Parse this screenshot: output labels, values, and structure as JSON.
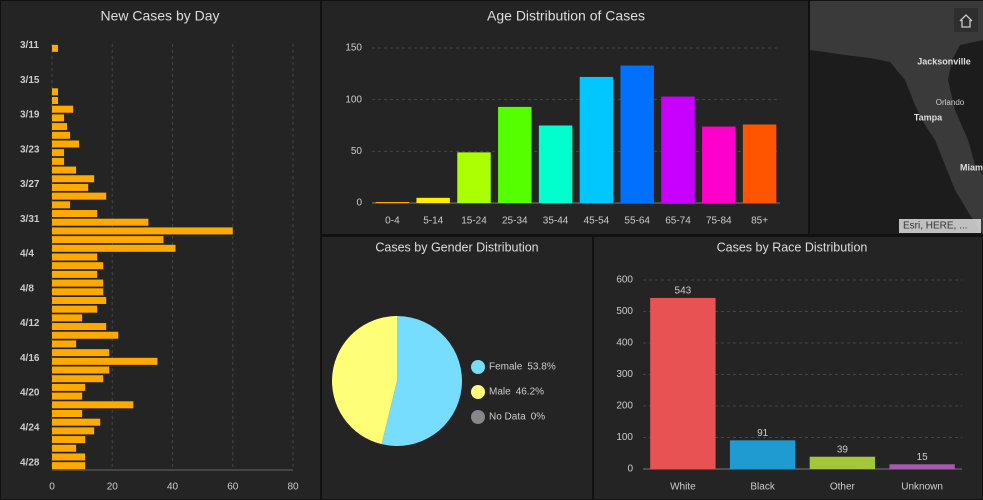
{
  "chart_data": [
    {
      "type": "hbar",
      "title": "New Cases by Day",
      "categories": [
        "3/11",
        null,
        null,
        null,
        "3/15",
        null,
        null,
        null,
        "3/19",
        null,
        null,
        null,
        "3/23",
        null,
        null,
        null,
        "3/27",
        null,
        null,
        null,
        "3/31",
        null,
        null,
        null,
        "4/4",
        null,
        null,
        null,
        "4/8",
        null,
        null,
        null,
        "4/12",
        null,
        null,
        null,
        "4/16",
        null,
        null,
        null,
        "4/20",
        null,
        null,
        null,
        "4/24",
        null,
        null,
        null,
        "4/28"
      ],
      "values": [
        2,
        0,
        0,
        0,
        0,
        2,
        2,
        7,
        4,
        5,
        6,
        9,
        4,
        4,
        8,
        14,
        12,
        18,
        6,
        15,
        32,
        60,
        37,
        41,
        15,
        17,
        15,
        17,
        17,
        18,
        15,
        10,
        18,
        22,
        8,
        19,
        35,
        19,
        17,
        11,
        10,
        27,
        10,
        16,
        14,
        11,
        8,
        11,
        11
      ],
      "color": "#ffaa00",
      "xlim": [
        0,
        80
      ],
      "xticks": [
        0,
        20,
        40,
        60,
        80
      ],
      "grid": true
    },
    {
      "type": "bar",
      "title": "Age Distribution of Cases",
      "categories": [
        "0-4",
        "5-14",
        "15-24",
        "25-34",
        "35-44",
        "45-54",
        "55-64",
        "65-74",
        "75-84",
        "85+"
      ],
      "values": [
        1,
        5,
        49,
        93,
        75,
        122,
        133,
        103,
        74,
        76
      ],
      "colors": [
        "#ffaa00",
        "#ffee00",
        "#aaff00",
        "#55ff00",
        "#00ffcc",
        "#00c8ff",
        "#0070ff",
        "#c800ff",
        "#ff00cc",
        "#ff5500"
      ],
      "ylim": [
        0,
        150
      ],
      "yticks": [
        0,
        50,
        100,
        150
      ],
      "grid": true
    },
    {
      "type": "pie",
      "title": "Cases by Gender Distribution",
      "categories": [
        "Female",
        "Male",
        "No Data"
      ],
      "values": [
        53.8,
        46.2,
        0
      ],
      "value_labels": [
        "53.8%",
        "46.2%",
        "0%"
      ],
      "colors": [
        "#77ddff",
        "#ffff77",
        "#888888"
      ]
    },
    {
      "type": "bar",
      "title": "Cases by Race Distribution",
      "categories": [
        "White",
        "Black",
        "Other",
        "Unknown"
      ],
      "values": [
        543,
        91,
        39,
        15
      ],
      "colors": [
        "#e85252",
        "#1f9bd1",
        "#a4c639",
        "#a35bab"
      ],
      "ylim": [
        0,
        600
      ],
      "yticks": [
        0,
        100,
        200,
        300,
        400,
        500,
        600
      ],
      "grid": true,
      "data_labels": true
    }
  ],
  "map": {
    "places": [
      "Jacksonville",
      "Orlando",
      "Tampa",
      "Miami"
    ],
    "attribution": "Esri, HERE, ..."
  }
}
